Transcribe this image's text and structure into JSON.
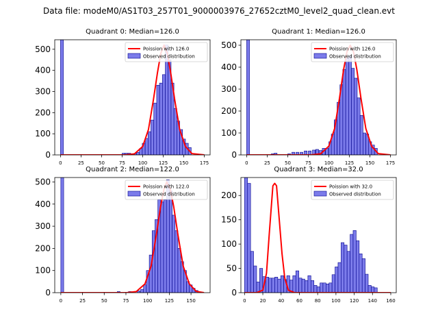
{
  "figure_title": "Data file: modeM0/AS1T03_257T01_9000003976_27652cztM0_level2_quad_clean.evt",
  "colors": {
    "bar_fill": "#7b7bea",
    "bar_edge": "#00008b",
    "poisson_line": "#ff0000",
    "frame": "#000000"
  },
  "chart_data": [
    {
      "type": "bar",
      "title": "Quadrant 0: Median=126.0",
      "legend": {
        "line": "Poission with 126.0",
        "bars": "Observed distribution",
        "position": "top-right"
      },
      "xlim": [
        -7,
        182
      ],
      "ylim": [
        0,
        545
      ],
      "xticks": [
        0,
        25,
        50,
        75,
        100,
        125,
        150,
        175
      ],
      "yticks": [
        0,
        100,
        200,
        300,
        400,
        500
      ],
      "bin_width": 3.5,
      "bins": [
        [
          0,
          545
        ],
        [
          75,
          8
        ],
        [
          78.5,
          8
        ],
        [
          82,
          8
        ],
        [
          85.5,
          5
        ],
        [
          89,
          7
        ],
        [
          92.5,
          12
        ],
        [
          96,
          30
        ],
        [
          99.5,
          55
        ],
        [
          103,
          78
        ],
        [
          106.5,
          110
        ],
        [
          110,
          165
        ],
        [
          113.5,
          245
        ],
        [
          117,
          330
        ],
        [
          120.5,
          340
        ],
        [
          124,
          380
        ],
        [
          127.5,
          520
        ],
        [
          131,
          450
        ],
        [
          134.5,
          340
        ],
        [
          138,
          220
        ],
        [
          141.5,
          160
        ],
        [
          145,
          120
        ],
        [
          148.5,
          75
        ],
        [
          152,
          55
        ],
        [
          155.5,
          35
        ]
      ],
      "poisson": {
        "mean": 126.0,
        "peak": 520,
        "x_range": [
          0,
          175
        ],
        "curve": [
          [
            0,
            0
          ],
          [
            78,
            0
          ],
          [
            90,
            5
          ],
          [
            100,
            40
          ],
          [
            107,
            120
          ],
          [
            113,
            260
          ],
          [
            118,
            390
          ],
          [
            122,
            480
          ],
          [
            126,
            520
          ],
          [
            130,
            480
          ],
          [
            134,
            390
          ],
          [
            139,
            260
          ],
          [
            145,
            120
          ],
          [
            152,
            40
          ],
          [
            160,
            6
          ],
          [
            175,
            0
          ]
        ]
      }
    },
    {
      "type": "bar",
      "title": "Quadrant 1: Median=126.0",
      "legend": {
        "line": "Poission with 126.0",
        "bars": "Observed distribution",
        "position": "top-right"
      },
      "xlim": [
        -7,
        182
      ],
      "ylim": [
        0,
        525
      ],
      "xticks": [
        0,
        25,
        50,
        75,
        100,
        125,
        150,
        175
      ],
      "yticks": [
        0,
        100,
        200,
        300,
        400,
        500
      ],
      "bin_width": 3.5,
      "bins": [
        [
          0,
          525
        ],
        [
          30,
          5
        ],
        [
          33.5,
          8
        ],
        [
          50,
          5
        ],
        [
          55,
          12
        ],
        [
          60,
          12
        ],
        [
          65,
          12
        ],
        [
          70,
          18
        ],
        [
          75,
          18
        ],
        [
          80,
          22
        ],
        [
          84,
          25
        ],
        [
          88,
          20
        ],
        [
          92,
          30
        ],
        [
          96,
          30
        ],
        [
          100,
          60
        ],
        [
          103,
          95
        ],
        [
          106.5,
          160
        ],
        [
          110,
          240
        ],
        [
          113.5,
          320
        ],
        [
          117,
          390
        ],
        [
          120.5,
          440
        ],
        [
          124,
          450
        ],
        [
          127.5,
          395
        ],
        [
          131,
          350
        ],
        [
          134.5,
          260
        ],
        [
          138,
          180
        ],
        [
          141.5,
          100
        ],
        [
          145,
          95
        ],
        [
          148.5,
          60
        ],
        [
          152,
          45
        ],
        [
          155.5,
          30
        ]
      ],
      "poisson": {
        "mean": 126.0,
        "peak": 500,
        "x_range": [
          0,
          175
        ],
        "curve": [
          [
            0,
            0
          ],
          [
            78,
            0
          ],
          [
            90,
            5
          ],
          [
            100,
            40
          ],
          [
            107,
            120
          ],
          [
            113,
            260
          ],
          [
            118,
            390
          ],
          [
            122,
            470
          ],
          [
            126,
            500
          ],
          [
            130,
            470
          ],
          [
            134,
            390
          ],
          [
            139,
            260
          ],
          [
            145,
            120
          ],
          [
            152,
            40
          ],
          [
            160,
            6
          ],
          [
            175,
            0
          ]
        ]
      }
    },
    {
      "type": "bar",
      "title": "Quadrant 2: Median=122.0",
      "legend": {
        "line": "Poission with 122.0",
        "bars": "Observed distribution",
        "position": "top-right"
      },
      "xlim": [
        -7,
        172
      ],
      "ylim": [
        0,
        520
      ],
      "xticks": [
        0,
        25,
        50,
        75,
        100,
        125,
        150
      ],
      "yticks": [
        0,
        100,
        200,
        300,
        400,
        500
      ],
      "bin_width": 3.3,
      "bins": [
        [
          0,
          520
        ],
        [
          65,
          5
        ],
        [
          78,
          5
        ],
        [
          88,
          8
        ],
        [
          92,
          15
        ],
        [
          95.3,
          35
        ],
        [
          98.6,
          100
        ],
        [
          101.9,
          170
        ],
        [
          105.2,
          280
        ],
        [
          108.5,
          330
        ],
        [
          111.8,
          420
        ],
        [
          115.1,
          410
        ],
        [
          118.4,
          420
        ],
        [
          121.7,
          510
        ],
        [
          125,
          460
        ],
        [
          128.3,
          350
        ],
        [
          131.6,
          280
        ],
        [
          134.9,
          200
        ],
        [
          138.2,
          140
        ],
        [
          141.5,
          100
        ],
        [
          144.8,
          50
        ],
        [
          148.1,
          35
        ],
        [
          151.4,
          20
        ],
        [
          154.7,
          10
        ]
      ],
      "poisson": {
        "mean": 122.0,
        "peak": 500,
        "x_range": [
          0,
          165
        ],
        "curve": [
          [
            0,
            0
          ],
          [
            76,
            0
          ],
          [
            87,
            5
          ],
          [
            97,
            40
          ],
          [
            104,
            120
          ],
          [
            110,
            260
          ],
          [
            115,
            390
          ],
          [
            119,
            470
          ],
          [
            122,
            500
          ],
          [
            126,
            470
          ],
          [
            130,
            390
          ],
          [
            135,
            260
          ],
          [
            141,
            120
          ],
          [
            148,
            40
          ],
          [
            156,
            6
          ],
          [
            165,
            0
          ]
        ]
      }
    },
    {
      "type": "bar",
      "title": "Quadrant 3: Median=32.0",
      "legend": {
        "line": "Poission with 32.0",
        "bars": "Observed distribution",
        "position": "top-right"
      },
      "xlim": [
        -4,
        166
      ],
      "ylim": [
        0,
        237
      ],
      "xticks": [
        0,
        20,
        40,
        60,
        80,
        100,
        120,
        140,
        160
      ],
      "yticks": [
        0,
        50,
        100,
        150,
        200
      ],
      "bin_width": 3.3,
      "bins": [
        [
          0,
          237
        ],
        [
          3.3,
          225
        ],
        [
          6.6,
          85
        ],
        [
          9.9,
          55
        ],
        [
          13.2,
          22
        ],
        [
          16.5,
          50
        ],
        [
          19.8,
          33
        ],
        [
          23.1,
          32
        ],
        [
          26.4,
          30
        ],
        [
          29.7,
          30
        ],
        [
          33,
          32
        ],
        [
          36.3,
          28
        ],
        [
          39.6,
          35
        ],
        [
          42.9,
          27
        ],
        [
          46.2,
          35
        ],
        [
          49.5,
          26
        ],
        [
          52.8,
          35
        ],
        [
          56.1,
          45
        ],
        [
          59.4,
          30
        ],
        [
          62.7,
          28
        ],
        [
          66,
          25
        ],
        [
          69.3,
          35
        ],
        [
          72.6,
          25
        ],
        [
          75.9,
          15
        ],
        [
          79.2,
          12
        ],
        [
          82.5,
          20
        ],
        [
          85.8,
          20
        ],
        [
          89.1,
          18
        ],
        [
          92.4,
          20
        ],
        [
          95.7,
          37
        ],
        [
          99,
          53
        ],
        [
          102.3,
          62
        ],
        [
          105.6,
          103
        ],
        [
          108.9,
          98
        ],
        [
          112.2,
          85
        ],
        [
          115.5,
          120
        ],
        [
          118.8,
          128
        ],
        [
          122.1,
          107
        ],
        [
          125.4,
          80
        ],
        [
          128.7,
          70
        ],
        [
          132,
          38
        ],
        [
          135.3,
          15
        ],
        [
          138.6,
          12
        ],
        [
          141.9,
          10
        ]
      ],
      "poisson": {
        "mean": 32.0,
        "peak": 225,
        "x_range": [
          0,
          160
        ],
        "curve": [
          [
            0,
            0
          ],
          [
            13,
            0
          ],
          [
            20,
            5
          ],
          [
            24,
            40
          ],
          [
            27,
            120
          ],
          [
            29,
            170
          ],
          [
            31,
            220
          ],
          [
            33,
            225
          ],
          [
            35,
            220
          ],
          [
            38,
            150
          ],
          [
            41,
            80
          ],
          [
            44,
            30
          ],
          [
            48,
            5
          ],
          [
            55,
            0
          ],
          [
            160,
            0
          ]
        ]
      }
    }
  ]
}
